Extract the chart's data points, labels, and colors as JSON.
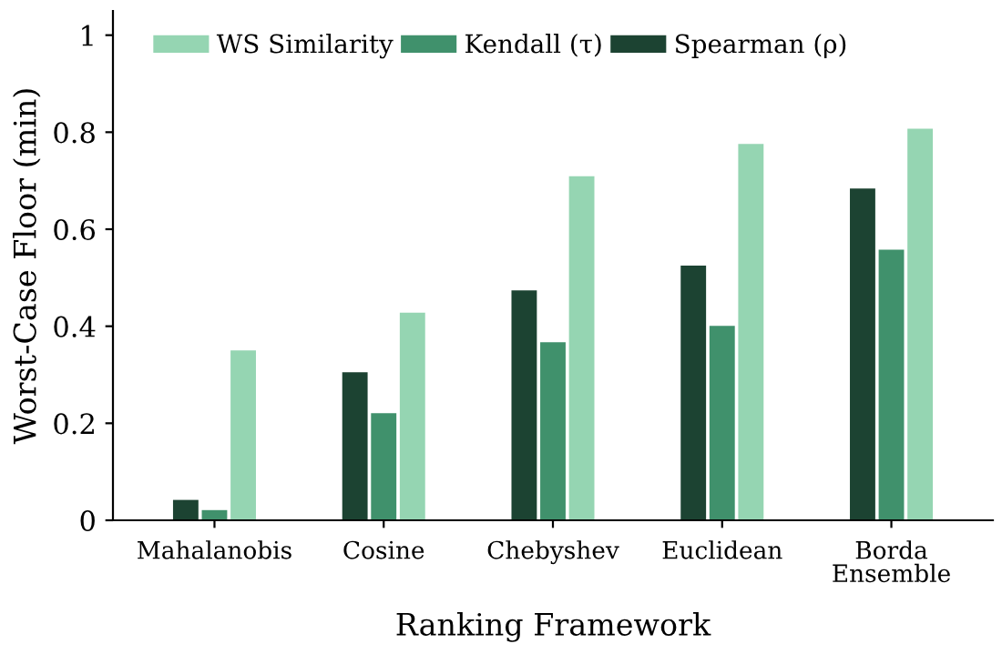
{
  "chart_data": {
    "type": "bar",
    "xlabel": "Ranking Framework",
    "ylabel": "Worst-Case Floor (min)",
    "categories": [
      "Mahalanobis",
      "Cosine",
      "Chebyshev",
      "Euclidean",
      "Borda\nEnsemble"
    ],
    "series": [
      {
        "name": "Spearman (ρ)",
        "color": "#1c4332",
        "values": [
          0.042,
          0.305,
          0.474,
          0.525,
          0.684
        ]
      },
      {
        "name": "Kendall (τ)",
        "color": "#40916c",
        "values": [
          0.021,
          0.221,
          0.367,
          0.401,
          0.558
        ]
      },
      {
        "name": "WS Similarity",
        "color": "#95d5b2",
        "values": [
          0.35,
          0.428,
          0.709,
          0.776,
          0.807
        ]
      }
    ],
    "ylim": [
      0,
      1.05
    ],
    "yticks": [
      0,
      0.2,
      0.4,
      0.6,
      0.8,
      1
    ],
    "grid": false,
    "legend": "top left"
  }
}
